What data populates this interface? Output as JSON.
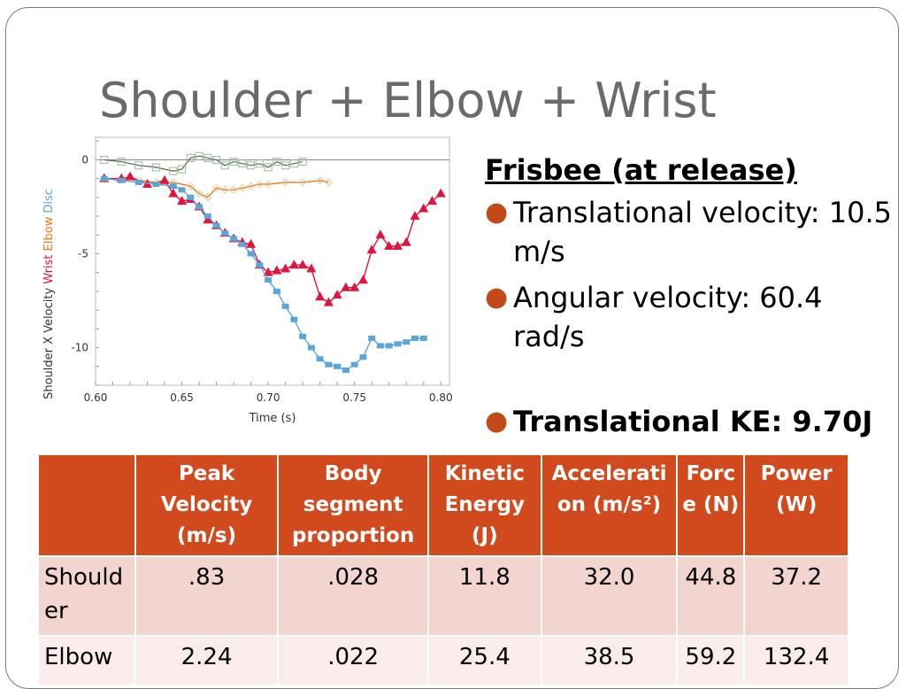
{
  "slide": {
    "title": "Shoulder + Elbow + Wrist"
  },
  "bullets": {
    "heading": "Frisbee (at release)",
    "items": [
      "Translational velocity: 10.5 m/s",
      "Angular velocity: 60.4 rad/s",
      "Translational KE: 9.70J"
    ]
  },
  "table": {
    "headers": [
      "",
      "Peak Velocity (m/s)",
      "Body segment proportion",
      "Kinetic Energy (J)",
      "Accelerati on (m/s²)",
      "Forc e (N)",
      "Power (W)"
    ],
    "rows": [
      [
        "Should er",
        ".83",
        ".028",
        "11.8",
        "32.0",
        "44.8",
        "37.2"
      ],
      [
        "Elbow",
        "2.24",
        ".022",
        "25.4",
        "38.5",
        "59.2",
        "132.4"
      ]
    ]
  },
  "colors": {
    "disc": "#5aa6d8",
    "elbow": "#e07b1a",
    "wrist": "#e0143c",
    "shoulder": "#4e6a4e",
    "accent": "#d04a1e"
  },
  "chart_data": {
    "type": "line",
    "xlabel": "Time (s)",
    "ylabel_parts": [
      {
        "text": "Shoulder X Velocity",
        "color": "#333333"
      },
      {
        "text": "Wrist",
        "color": "#e0143c"
      },
      {
        "text": "Elbow",
        "color": "#e07b1a"
      },
      {
        "text": "Disc",
        "color": "#5aa6d8"
      }
    ],
    "xlim": [
      0.6,
      0.805
    ],
    "ylim": [
      -12,
      1.2
    ],
    "xticks": [
      "0.60",
      "0.65",
      "0.70",
      "0.75",
      "0.80"
    ],
    "yticks": [
      "0",
      "-5",
      "-10"
    ],
    "series": [
      {
        "name": "Shoulder",
        "color": "#4e6a4e",
        "marker": "square-open",
        "x": [
          0.605,
          0.615,
          0.625,
          0.635,
          0.645,
          0.65,
          0.655,
          0.66,
          0.665,
          0.67,
          0.675,
          0.68,
          0.685,
          0.69,
          0.695,
          0.7,
          0.705,
          0.71,
          0.715,
          0.72
        ],
        "y": [
          0.0,
          -0.1,
          -0.3,
          -0.4,
          -0.6,
          -0.5,
          0.1,
          0.2,
          0.1,
          0.0,
          -0.3,
          -0.1,
          -0.2,
          -0.3,
          -0.2,
          -0.4,
          -0.1,
          -0.3,
          -0.2,
          -0.1
        ]
      },
      {
        "name": "Elbow",
        "color": "#e07b1a",
        "marker": "diamond-open",
        "x": [
          0.605,
          0.615,
          0.625,
          0.635,
          0.645,
          0.655,
          0.66,
          0.665,
          0.67,
          0.675,
          0.68,
          0.685,
          0.69,
          0.695,
          0.7,
          0.71,
          0.72,
          0.73,
          0.735
        ],
        "y": [
          -1.0,
          -1.0,
          -1.1,
          -1.2,
          -1.2,
          -1.4,
          -1.8,
          -2.0,
          -1.5,
          -1.6,
          -1.6,
          -1.5,
          -1.4,
          -1.3,
          -1.3,
          -1.2,
          -1.2,
          -1.1,
          -1.2
        ]
      },
      {
        "name": "Wrist",
        "color": "#e0143c",
        "marker": "triangle",
        "x": [
          0.605,
          0.615,
          0.62,
          0.63,
          0.64,
          0.645,
          0.65,
          0.655,
          0.66,
          0.665,
          0.67,
          0.675,
          0.68,
          0.685,
          0.69,
          0.695,
          0.7,
          0.705,
          0.71,
          0.715,
          0.72,
          0.725,
          0.73,
          0.735,
          0.74,
          0.745,
          0.75,
          0.755,
          0.76,
          0.765,
          0.77,
          0.775,
          0.78,
          0.785,
          0.79,
          0.795,
          0.8
        ],
        "y": [
          -1.0,
          -1.0,
          -0.9,
          -1.3,
          -1.1,
          -1.8,
          -2.2,
          -2.1,
          -2.5,
          -3.2,
          -3.5,
          -3.9,
          -4.2,
          -4.4,
          -4.5,
          -5.6,
          -6.0,
          -5.9,
          -5.8,
          -5.6,
          -5.6,
          -5.8,
          -7.3,
          -7.6,
          -7.2,
          -6.8,
          -6.8,
          -6.4,
          -4.8,
          -4.0,
          -4.6,
          -4.6,
          -4.4,
          -3.0,
          -2.6,
          -2.2,
          -1.8
        ]
      },
      {
        "name": "Disc",
        "color": "#5aa6d8",
        "marker": "square",
        "x": [
          0.605,
          0.615,
          0.625,
          0.635,
          0.645,
          0.65,
          0.655,
          0.66,
          0.665,
          0.67,
          0.675,
          0.68,
          0.685,
          0.69,
          0.695,
          0.7,
          0.705,
          0.71,
          0.715,
          0.72,
          0.725,
          0.73,
          0.735,
          0.74,
          0.745,
          0.75,
          0.755,
          0.76,
          0.765,
          0.77,
          0.775,
          0.78,
          0.785,
          0.79
        ],
        "y": [
          -1.0,
          -1.1,
          -1.2,
          -1.3,
          -1.4,
          -1.6,
          -2.0,
          -2.5,
          -3.0,
          -3.5,
          -3.9,
          -4.2,
          -4.5,
          -5.0,
          -5.6,
          -6.4,
          -7.0,
          -7.8,
          -8.5,
          -9.4,
          -10.0,
          -10.6,
          -10.9,
          -11.0,
          -11.2,
          -10.9,
          -10.5,
          -9.5,
          -9.9,
          -9.9,
          -9.8,
          -9.7,
          -9.5,
          -9.5
        ]
      }
    ]
  }
}
